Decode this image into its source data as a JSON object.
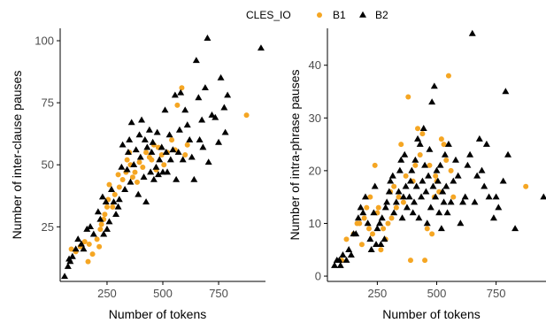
{
  "legend": {
    "title": "CLES_IO",
    "items": [
      {
        "label": "B1",
        "color": "#F5A623",
        "shape": "circle"
      },
      {
        "label": "B2",
        "color": "#000000",
        "shape": "triangle"
      }
    ]
  },
  "chart_data": [
    {
      "type": "scatter",
      "title": "",
      "xlabel": "Number of tokens",
      "ylabel": "Number of inter-clause pauses",
      "xlim": [
        40,
        960
      ],
      "ylim": [
        3,
        105
      ],
      "xticks": [
        250,
        500,
        750
      ],
      "yticks": [
        25,
        50,
        75,
        100
      ],
      "grid": false,
      "series": [
        {
          "name": "B1",
          "marker": "circle",
          "color": "#F5A623",
          "points": [
            [
              90,
              16
            ],
            [
              110,
              15
            ],
            [
              130,
              17
            ],
            [
              150,
              19
            ],
            [
              165,
              11
            ],
            [
              170,
              18
            ],
            [
              185,
              14
            ],
            [
              205,
              20
            ],
            [
              215,
              17
            ],
            [
              220,
              24
            ],
            [
              225,
              26
            ],
            [
              235,
              28
            ],
            [
              240,
              30
            ],
            [
              250,
              33
            ],
            [
              255,
              36
            ],
            [
              260,
              42
            ],
            [
              275,
              33
            ],
            [
              285,
              38
            ],
            [
              300,
              46
            ],
            [
              305,
              41
            ],
            [
              320,
              44
            ],
            [
              335,
              47
            ],
            [
              340,
              52
            ],
            [
              350,
              55
            ],
            [
              355,
              50
            ],
            [
              365,
              45
            ],
            [
              375,
              47
            ],
            [
              385,
              43
            ],
            [
              395,
              51
            ],
            [
              410,
              49
            ],
            [
              425,
              55
            ],
            [
              440,
              53
            ],
            [
              450,
              52
            ],
            [
              460,
              58
            ],
            [
              470,
              48
            ],
            [
              480,
              57
            ],
            [
              495,
              54
            ],
            [
              505,
              50
            ],
            [
              520,
              55
            ],
            [
              540,
              60
            ],
            [
              555,
              56
            ],
            [
              565,
              74
            ],
            [
              585,
              81
            ],
            [
              600,
              54
            ],
            [
              610,
              58
            ],
            [
              875,
              70
            ]
          ]
        },
        {
          "name": "B2",
          "marker": "triangle",
          "color": "#000000",
          "points": [
            [
              60,
              5
            ],
            [
              75,
              9
            ],
            [
              80,
              12
            ],
            [
              85,
              11
            ],
            [
              95,
              13
            ],
            [
              110,
              16
            ],
            [
              120,
              20
            ],
            [
              135,
              18
            ],
            [
              145,
              16
            ],
            [
              160,
              24
            ],
            [
              175,
              25
            ],
            [
              190,
              22
            ],
            [
              210,
              31
            ],
            [
              220,
              28
            ],
            [
              230,
              37
            ],
            [
              235,
              22
            ],
            [
              245,
              35
            ],
            [
              250,
              24
            ],
            [
              260,
              27
            ],
            [
              270,
              40
            ],
            [
              280,
              35
            ],
            [
              290,
              30
            ],
            [
              300,
              33
            ],
            [
              305,
              36
            ],
            [
              315,
              49
            ],
            [
              320,
              58
            ],
            [
              330,
              40
            ],
            [
              340,
              48
            ],
            [
              345,
              55
            ],
            [
              350,
              60
            ],
            [
              355,
              43
            ],
            [
              360,
              67
            ],
            [
              370,
              50
            ],
            [
              380,
              56
            ],
            [
              390,
              38
            ],
            [
              395,
              62
            ],
            [
              400,
              53
            ],
            [
              405,
              68
            ],
            [
              415,
              45
            ],
            [
              420,
              60
            ],
            [
              425,
              35
            ],
            [
              430,
              57
            ],
            [
              440,
              64
            ],
            [
              445,
              47
            ],
            [
              450,
              55
            ],
            [
              455,
              59
            ],
            [
              460,
              44
            ],
            [
              470,
              49
            ],
            [
              475,
              63
            ],
            [
              480,
              46
            ],
            [
              485,
              52
            ],
            [
              495,
              57
            ],
            [
              500,
              47
            ],
            [
              510,
              72
            ],
            [
              515,
              55
            ],
            [
              520,
              47
            ],
            [
              530,
              62
            ],
            [
              535,
              52
            ],
            [
              545,
              56
            ],
            [
              555,
              78
            ],
            [
              560,
              44
            ],
            [
              570,
              55
            ],
            [
              575,
              64
            ],
            [
              580,
              79
            ],
            [
              590,
              52
            ],
            [
              600,
              72
            ],
            [
              610,
              66
            ],
            [
              620,
              60
            ],
            [
              630,
              53
            ],
            [
              640,
              44
            ],
            [
              650,
              92
            ],
            [
              660,
              77
            ],
            [
              665,
              60
            ],
            [
              675,
              68
            ],
            [
              680,
              57
            ],
            [
              690,
              81
            ],
            [
              700,
              101
            ],
            [
              705,
              51
            ],
            [
              720,
              70
            ],
            [
              735,
              69
            ],
            [
              750,
              59
            ],
            [
              760,
              85
            ],
            [
              775,
              73
            ],
            [
              780,
              63
            ],
            [
              790,
              78
            ],
            [
              940,
              97
            ]
          ]
        }
      ]
    },
    {
      "type": "scatter",
      "title": "",
      "xlabel": "Number of tokens",
      "ylabel": "Number of intra-phrase pauses",
      "xlim": [
        40,
        960
      ],
      "ylim": [
        -1,
        47
      ],
      "xticks": [
        250,
        500,
        750
      ],
      "yticks": [
        0,
        10,
        20,
        30,
        40
      ],
      "grid": false,
      "series": [
        {
          "name": "B1",
          "marker": "circle",
          "color": "#F5A623",
          "points": [
            [
              100,
              3
            ],
            [
              120,
              7
            ],
            [
              150,
              8
            ],
            [
              165,
              10
            ],
            [
              175,
              10
            ],
            [
              185,
              6
            ],
            [
              195,
              11
            ],
            [
              205,
              13
            ],
            [
              215,
              9
            ],
            [
              220,
              15
            ],
            [
              230,
              8
            ],
            [
              240,
              21
            ],
            [
              250,
              12
            ],
            [
              255,
              13
            ],
            [
              265,
              5
            ],
            [
              275,
              9
            ],
            [
              285,
              7
            ],
            [
              295,
              10
            ],
            [
              305,
              16
            ],
            [
              310,
              11
            ],
            [
              320,
              17
            ],
            [
              330,
              13
            ],
            [
              340,
              15
            ],
            [
              350,
              25
            ],
            [
              360,
              14
            ],
            [
              370,
              19
            ],
            [
              380,
              34
            ],
            [
              390,
              3
            ],
            [
              400,
              18
            ],
            [
              410,
              21
            ],
            [
              420,
              28
            ],
            [
              430,
              23
            ],
            [
              440,
              27
            ],
            [
              450,
              3
            ],
            [
              460,
              9
            ],
            [
              470,
              21
            ],
            [
              480,
              8
            ],
            [
              490,
              15
            ],
            [
              495,
              19
            ],
            [
              500,
              18
            ],
            [
              510,
              16
            ],
            [
              520,
              26
            ],
            [
              530,
              25
            ],
            [
              540,
              22
            ],
            [
              550,
              38
            ],
            [
              560,
              20
            ],
            [
              570,
              15
            ],
            [
              875,
              17
            ]
          ]
        },
        {
          "name": "B2",
          "marker": "triangle",
          "color": "#000000",
          "points": [
            [
              70,
              2
            ],
            [
              80,
              3
            ],
            [
              90,
              3
            ],
            [
              95,
              2
            ],
            [
              105,
              4
            ],
            [
              120,
              3
            ],
            [
              130,
              5
            ],
            [
              140,
              4
            ],
            [
              150,
              8
            ],
            [
              160,
              8
            ],
            [
              170,
              11
            ],
            [
              180,
              13
            ],
            [
              190,
              12
            ],
            [
              200,
              15
            ],
            [
              210,
              10
            ],
            [
              220,
              7
            ],
            [
              225,
              5
            ],
            [
              235,
              12
            ],
            [
              240,
              17
            ],
            [
              245,
              6
            ],
            [
              250,
              9
            ],
            [
              260,
              10
            ],
            [
              265,
              6
            ],
            [
              270,
              11
            ],
            [
              280,
              7
            ],
            [
              285,
              13
            ],
            [
              290,
              14
            ],
            [
              300,
              16
            ],
            [
              305,
              18
            ],
            [
              315,
              19
            ],
            [
              320,
              12
            ],
            [
              330,
              14
            ],
            [
              340,
              16
            ],
            [
              345,
              20
            ],
            [
              350,
              22
            ],
            [
              355,
              11
            ],
            [
              360,
              15
            ],
            [
              365,
              23
            ],
            [
              370,
              17
            ],
            [
              375,
              13
            ],
            [
              385,
              15
            ],
            [
              390,
              18
            ],
            [
              395,
              20
            ],
            [
              400,
              12
            ],
            [
              405,
              14
            ],
            [
              410,
              22
            ],
            [
              415,
              17
            ],
            [
              420,
              26
            ],
            [
              425,
              11
            ],
            [
              430,
              25
            ],
            [
              435,
              15
            ],
            [
              440,
              18
            ],
            [
              445,
              28
            ],
            [
              450,
              21
            ],
            [
              455,
              16
            ],
            [
              460,
              10
            ],
            [
              465,
              19
            ],
            [
              470,
              24
            ],
            [
              475,
              13
            ],
            [
              480,
              33
            ],
            [
              485,
              17
            ],
            [
              490,
              36
            ],
            [
              495,
              15
            ],
            [
              500,
              20
            ],
            [
              505,
              18
            ],
            [
              510,
              12
            ],
            [
              515,
              21
            ],
            [
              520,
              9
            ],
            [
              525,
              16
            ],
            [
              530,
              14
            ],
            [
              535,
              23
            ],
            [
              540,
              17
            ],
            [
              545,
              12
            ],
            [
              550,
              25
            ],
            [
              560,
              14
            ],
            [
              570,
              18
            ],
            [
              580,
              22
            ],
            [
              590,
              19
            ],
            [
              600,
              10
            ],
            [
              610,
              14
            ],
            [
              620,
              15
            ],
            [
              630,
              21
            ],
            [
              640,
              23
            ],
            [
              650,
              46
            ],
            [
              660,
              14
            ],
            [
              670,
              19
            ],
            [
              680,
              26
            ],
            [
              690,
              20
            ],
            [
              700,
              17
            ],
            [
              710,
              25
            ],
            [
              720,
              15
            ],
            [
              740,
              11
            ],
            [
              750,
              15
            ],
            [
              760,
              13
            ],
            [
              780,
              18
            ],
            [
              790,
              35
            ],
            [
              800,
              23
            ],
            [
              830,
              9
            ],
            [
              950,
              15
            ]
          ]
        }
      ]
    }
  ]
}
